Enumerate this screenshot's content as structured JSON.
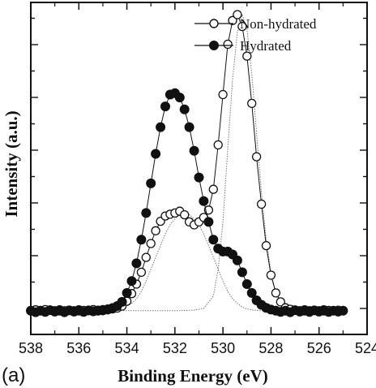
{
  "chart_data": {
    "type": "scatter",
    "panel_label": "(a)",
    "xlabel": "Binding Energy (eV)",
    "ylabel": "Intensity (a.u.)",
    "xlim": [
      538,
      524
    ],
    "x_reversed": true,
    "ylim": [
      -0.08,
      1.0
    ],
    "y_ticks_labeled": false,
    "x_ticks": [
      "538",
      "536",
      "534",
      "532",
      "530",
      "528",
      "526",
      "524"
    ],
    "x_tick_values": [
      538,
      536,
      534,
      532,
      530,
      528,
      526,
      524
    ],
    "legend_position": "top-right",
    "series": [
      {
        "name": "Non-hydrated",
        "marker": "open-circle",
        "line": "solid",
        "x": [
          538.0,
          537.8,
          537.6,
          537.4,
          537.2,
          537.0,
          536.8,
          536.6,
          536.4,
          536.2,
          536.0,
          535.8,
          535.6,
          535.4,
          535.2,
          535.0,
          534.8,
          534.6,
          534.4,
          534.2,
          534.0,
          533.8,
          533.6,
          533.4,
          533.2,
          533.0,
          532.8,
          532.6,
          532.4,
          532.2,
          532.0,
          531.8,
          531.6,
          531.4,
          531.2,
          531.0,
          530.8,
          530.6,
          530.4,
          530.2,
          530.0,
          529.8,
          529.6,
          529.4,
          529.2,
          529.0,
          528.8,
          528.6,
          528.4,
          528.2,
          528.0,
          527.8,
          527.6,
          527.4,
          527.2,
          527.0,
          526.8,
          526.6,
          526.4,
          526.2,
          526.0,
          525.8,
          525.6,
          525.4,
          525.2,
          525.0
        ],
        "y": [
          0.0,
          0.003,
          0.0,
          0.004,
          0.001,
          0.0,
          0.003,
          0.0,
          0.002,
          0.0,
          0.003,
          0.001,
          0.0,
          0.004,
          0.002,
          0.0,
          0.003,
          0.006,
          0.009,
          0.016,
          0.032,
          0.058,
          0.09,
          0.13,
          0.18,
          0.227,
          0.27,
          0.302,
          0.32,
          0.326,
          0.33,
          0.336,
          0.324,
          0.3,
          0.29,
          0.3,
          0.315,
          0.34,
          0.41,
          0.56,
          0.73,
          0.9,
          0.98,
          1.0,
          0.96,
          0.86,
          0.7,
          0.52,
          0.36,
          0.22,
          0.12,
          0.06,
          0.03,
          0.01,
          0.005,
          0.002,
          0.0,
          0.003,
          0.0,
          0.002,
          0.0,
          0.003,
          0.001,
          0.0,
          0.002,
          0.0
        ]
      },
      {
        "name": "Hydrated",
        "marker": "filled-circle",
        "line": "solid",
        "x": [
          538.0,
          537.8,
          537.6,
          537.4,
          537.2,
          537.0,
          536.8,
          536.6,
          536.4,
          536.2,
          536.0,
          535.8,
          535.6,
          535.4,
          535.2,
          535.0,
          534.8,
          534.6,
          534.4,
          534.2,
          534.0,
          533.8,
          533.6,
          533.4,
          533.2,
          533.0,
          532.8,
          532.6,
          532.4,
          532.2,
          532.0,
          531.8,
          531.6,
          531.4,
          531.2,
          531.0,
          530.8,
          530.6,
          530.4,
          530.2,
          530.0,
          529.8,
          529.6,
          529.4,
          529.2,
          529.0,
          528.8,
          528.6,
          528.4,
          528.2,
          528.0,
          527.8,
          527.6,
          527.4,
          527.2,
          527.0,
          526.8,
          526.6,
          526.4,
          526.2,
          526.0,
          525.8,
          525.6,
          525.4,
          525.2,
          525.0
        ],
        "y": [
          0.0,
          -0.005,
          0.0,
          -0.004,
          0.002,
          -0.003,
          0.0,
          -0.005,
          0.001,
          -0.003,
          0.0,
          -0.004,
          0.001,
          -0.002,
          0.0,
          0.003,
          0.005,
          0.009,
          0.016,
          0.03,
          0.06,
          0.1,
          0.16,
          0.24,
          0.33,
          0.43,
          0.53,
          0.62,
          0.69,
          0.73,
          0.735,
          0.72,
          0.68,
          0.62,
          0.54,
          0.45,
          0.37,
          0.3,
          0.24,
          0.21,
          0.2,
          0.2,
          0.19,
          0.17,
          0.13,
          0.09,
          0.06,
          0.035,
          0.02,
          0.01,
          0.004,
          0.0,
          -0.004,
          0.0,
          -0.005,
          0.002,
          -0.003,
          0.0,
          -0.004,
          0.001,
          -0.003,
          0.0,
          -0.004,
          0.0,
          -0.003,
          0.0
        ]
      }
    ],
    "fit_curves": [
      {
        "style": "dotted",
        "x": [
          538,
          537,
          536,
          535,
          534.6,
          534.2,
          533.8,
          533.6,
          533.4,
          533.2,
          533.0,
          532.8,
          532.6,
          532.4,
          532.2,
          532.0,
          531.8,
          531.6,
          531.4,
          531.2,
          531.0,
          530.8,
          530.6,
          530.4,
          530.2,
          530.0,
          529.8,
          529.6,
          529.4,
          529.2,
          529.0,
          528.8,
          528.6,
          528.4,
          528.2,
          528.0,
          527.8,
          527.5,
          527.0,
          526,
          525,
          524.8
        ],
        "y": [
          0,
          0,
          0,
          0,
          0.002,
          0.008,
          0.025,
          0.04,
          0.065,
          0.1,
          0.14,
          0.18,
          0.22,
          0.26,
          0.29,
          0.31,
          0.325,
          0.33,
          0.325,
          0.31,
          0.29,
          0.26,
          0.22,
          0.18,
          0.14,
          0.1,
          0.065,
          0.04,
          0.025,
          0.012,
          0.006,
          0.003,
          0.001,
          0,
          0,
          0,
          0,
          0,
          0,
          0,
          0,
          0
        ]
      },
      {
        "style": "dotted",
        "x": [
          538,
          534,
          532,
          531.2,
          530.8,
          530.4,
          530.2,
          530.0,
          529.8,
          529.6,
          529.4,
          529.2,
          529.0,
          528.8,
          528.6,
          528.4,
          528.2,
          528.0,
          527.8,
          527.6,
          527.4,
          527.2,
          527.0,
          526.5,
          526,
          525,
          524.8
        ],
        "y": [
          0,
          0,
          0,
          0.002,
          0.008,
          0.05,
          0.14,
          0.3,
          0.55,
          0.78,
          0.94,
          1.0,
          0.95,
          0.8,
          0.6,
          0.4,
          0.24,
          0.13,
          0.06,
          0.025,
          0.01,
          0.004,
          0.001,
          0,
          0,
          0,
          0
        ]
      }
    ]
  }
}
